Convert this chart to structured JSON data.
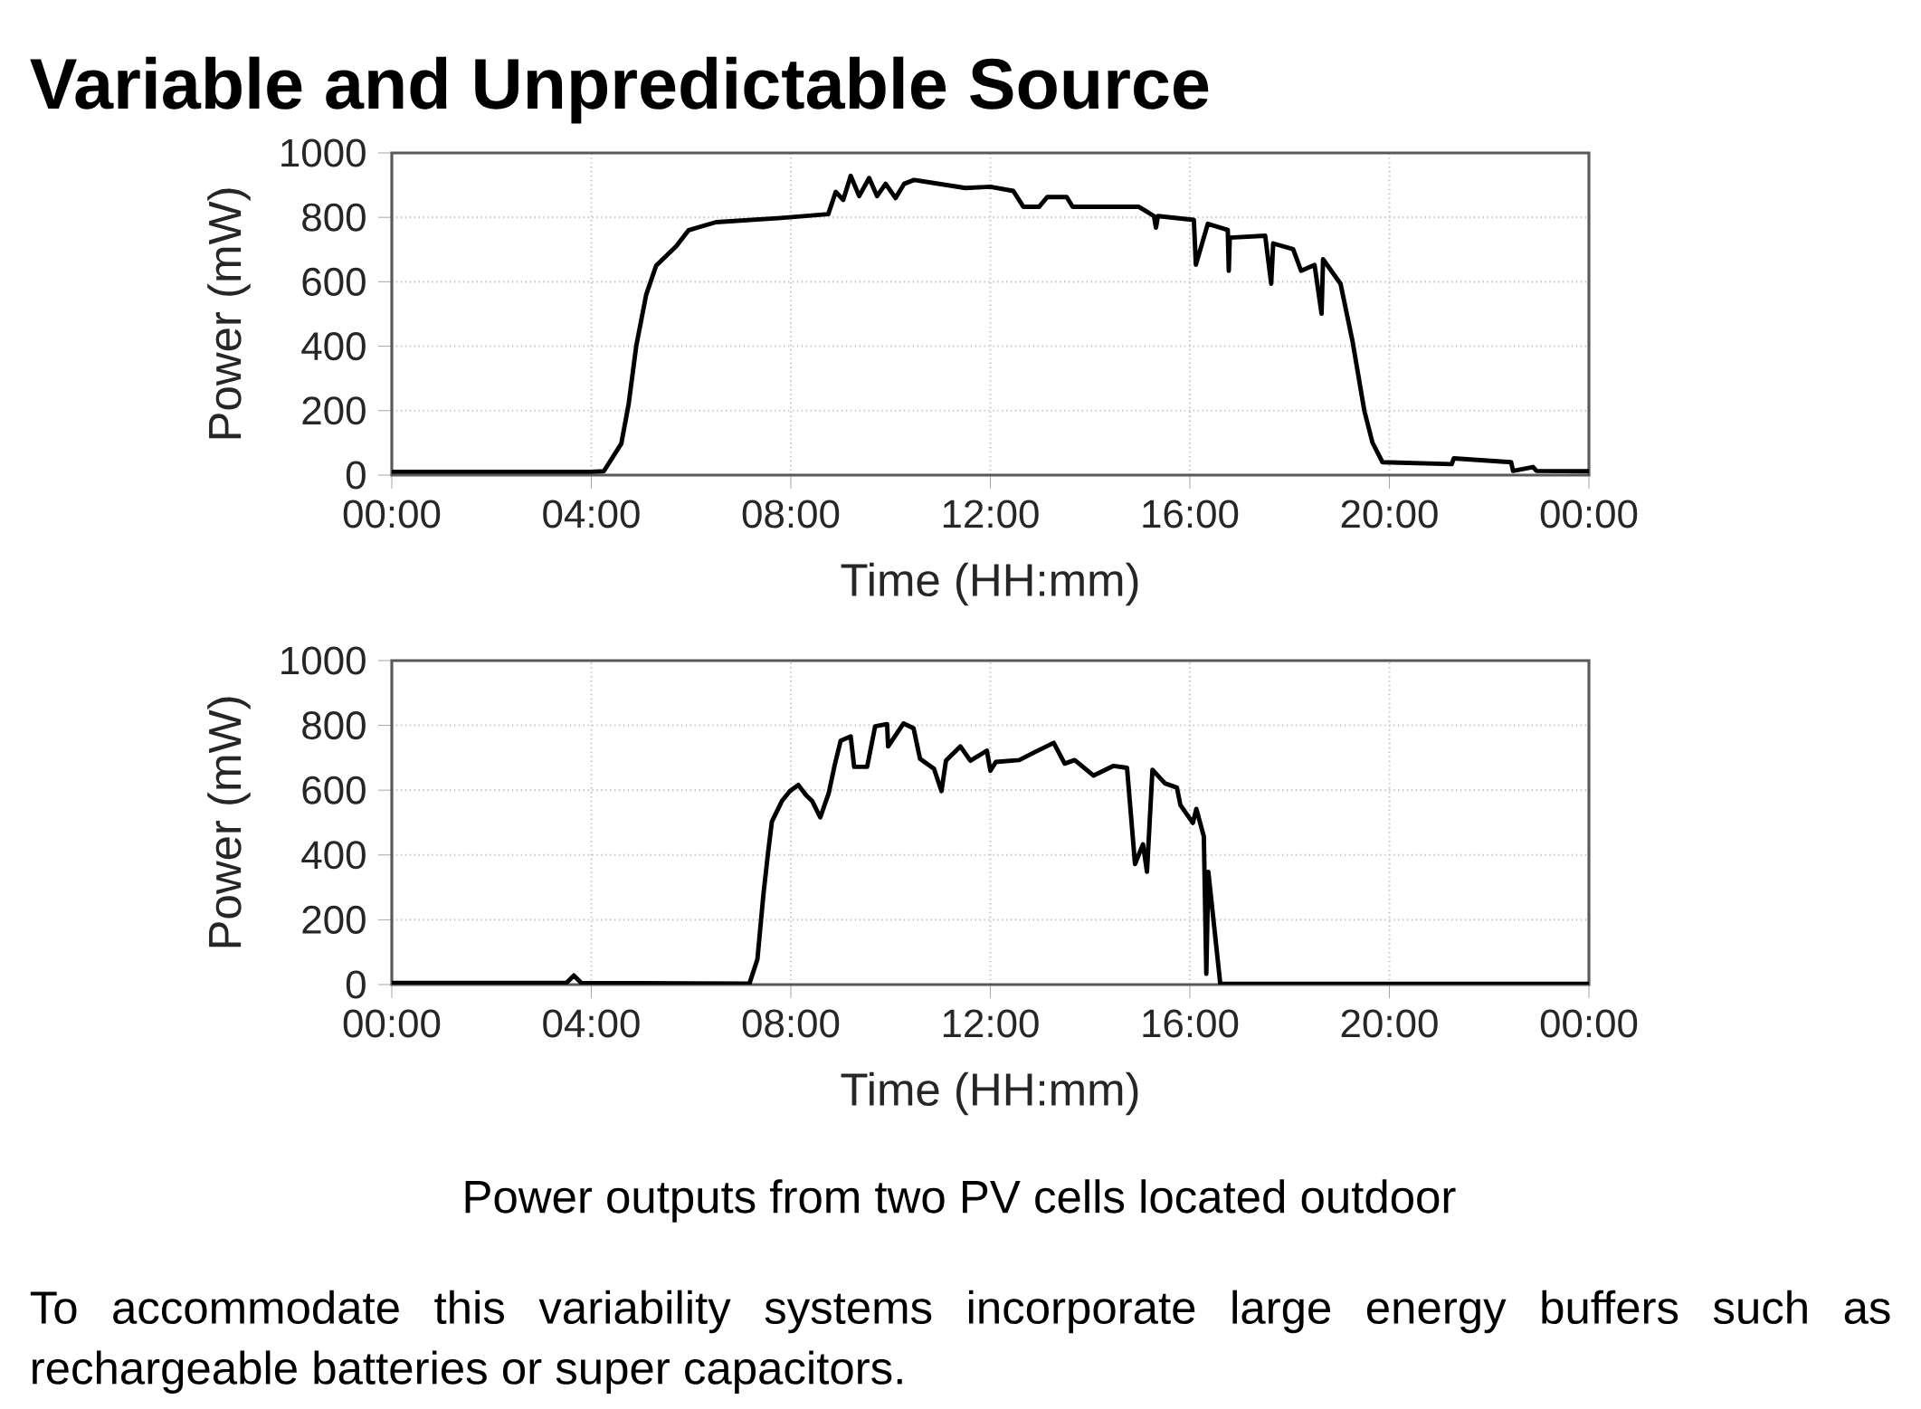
{
  "chart_data": [
    {
      "type": "line",
      "title": "Variable and Unpredictable Source",
      "xlabel": "Time (HH:mm)",
      "ylabel": "Power (mW)",
      "color": "#000000",
      "grid": true,
      "x": [
        0,
        2,
        4,
        4.25,
        4.6,
        4.75,
        4.9,
        5.1,
        5.3,
        5.7,
        5.95,
        6.5,
        7.8,
        8.75,
        8.9,
        9.05,
        9.2,
        9.37,
        9.57,
        9.73,
        9.9,
        10.1,
        10.27,
        10.47,
        11.5,
        12.0,
        12.46,
        12.66,
        12.98,
        13.14,
        13.53,
        13.65,
        14.97,
        15.28,
        15.32,
        15.36,
        16.08,
        16.12,
        16.36,
        16.76,
        16.78,
        16.8,
        17.51,
        17.63,
        17.67,
        18.07,
        18.23,
        18.5,
        18.64,
        18.67,
        19.02,
        19.26,
        19.5,
        19.66,
        19.86,
        21.25,
        21.29,
        22.44,
        22.48,
        22.88,
        22.95,
        24
      ],
      "values": [
        10,
        10,
        10,
        12,
        97,
        222,
        400,
        560,
        650,
        710,
        760,
        785,
        798,
        810,
        879,
        854,
        929,
        866,
        922,
        866,
        904,
        860,
        904,
        916,
        891,
        895,
        882,
        833,
        833,
        863,
        863,
        833,
        833,
        804,
        768,
        804,
        792,
        653,
        780,
        761,
        634,
        737,
        743,
        594,
        719,
        701,
        634,
        652,
        501,
        670,
        594,
        416,
        198,
        101,
        40,
        34,
        52,
        40,
        13,
        25,
        13,
        12
      ],
      "xlim": [
        0,
        24
      ],
      "ylim": [
        0,
        1000
      ],
      "xticks": [
        {
          "value": 0,
          "label": "00:00"
        },
        {
          "value": 4,
          "label": "04:00"
        },
        {
          "value": 8,
          "label": "08:00"
        },
        {
          "value": 12,
          "label": "12:00"
        },
        {
          "value": 16,
          "label": "16:00"
        },
        {
          "value": 20,
          "label": "20:00"
        },
        {
          "value": 24,
          "label": "00:00"
        }
      ],
      "yticks": [
        0,
        200,
        400,
        600,
        800,
        1000
      ]
    },
    {
      "type": "line",
      "xlabel": "Time (HH:mm)",
      "ylabel": "Power (mW)",
      "color": "#000000",
      "grid": true,
      "x": [
        0,
        3.5,
        3.65,
        3.8,
        7.17,
        7.33,
        7.45,
        7.54,
        7.62,
        7.82,
        7.98,
        8.15,
        8.31,
        8.43,
        8.59,
        8.76,
        8.88,
        9.0,
        9.2,
        9.27,
        9.53,
        9.69,
        9.93,
        9.95,
        10.26,
        10.46,
        10.59,
        10.87,
        11.02,
        11.11,
        11.4,
        11.6,
        11.93,
        12.0,
        12.11,
        12.58,
        12.9,
        13.27,
        13.49,
        13.69,
        14.07,
        14.47,
        14.74,
        14.9,
        15.06,
        15.14,
        15.25,
        15.5,
        15.74,
        15.81,
        16.06,
        16.13,
        16.28,
        16.33,
        16.37,
        16.61,
        24
      ],
      "values": [
        5,
        5,
        28,
        5,
        3,
        78,
        278,
        403,
        503,
        566,
        597,
        616,
        584,
        566,
        516,
        591,
        678,
        753,
        766,
        672,
        672,
        797,
        804,
        735,
        806,
        791,
        697,
        666,
        597,
        691,
        735,
        691,
        722,
        660,
        687,
        693,
        718,
        746,
        682,
        693,
        645,
        675,
        669,
        372,
        433,
        348,
        663,
        621,
        608,
        554,
        499,
        542,
        457,
        33,
        348,
        2,
        2
      ],
      "xlim": [
        0,
        24
      ],
      "ylim": [
        0,
        1000
      ],
      "xticks": [
        {
          "value": 0,
          "label": "00:00"
        },
        {
          "value": 4,
          "label": "04:00"
        },
        {
          "value": 8,
          "label": "08:00"
        },
        {
          "value": 12,
          "label": "12:00"
        },
        {
          "value": 16,
          "label": "16:00"
        },
        {
          "value": 20,
          "label": "20:00"
        },
        {
          "value": 24,
          "label": "00:00"
        }
      ],
      "yticks": [
        0,
        200,
        400,
        600,
        800,
        1000
      ],
      "annotations": [
        "Power outputs from two PV cells located outdoor",
        "To accommodate this variability systems incorporate large energy buffers such as rechargeable batteries or super capacitors."
      ]
    }
  ]
}
